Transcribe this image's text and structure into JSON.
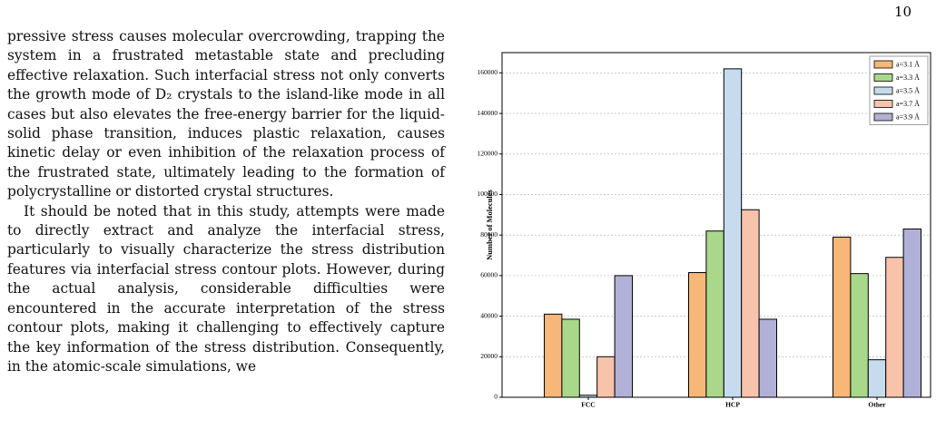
{
  "page_number": "10",
  "paragraphs": [
    "pressive stress causes molecular overcrowding, trapping the system in a frustrated metastable state and precluding effective relaxation. Such interfacial stress not only converts the growth mode of D₂ crystals to the island-like mode in all cases but also elevates the free-energy barrier for the liquid-solid phase transition, induces plastic relaxation, causes kinetic delay or even inhibition of the relaxation process of the frustrated state, ultimately leading to the formation of polycrystalline or distorted crystal structures.",
    "It should be noted that in this study, attempts were made to directly extract and analyze the interfacial stress, particularly to visually characterize the stress distribution features via interfacial stress contour plots. However, during the actual analysis, considerable difficulties were encountered in the accurate interpretation of the stress contour plots, making it challenging to effectively capture the key information of the stress distribution. Consequently, in the atomic-scale simulations, we"
  ],
  "chart_data": {
    "type": "bar",
    "y_label": "Number of Molecules",
    "categories": [
      "FCC",
      "HCP",
      "Other"
    ],
    "series": [
      {
        "name": "a=3.1 Å",
        "color": "#f6b778",
        "values": [
          41000,
          61500,
          79000
        ]
      },
      {
        "name": "a=3.3 Å",
        "color": "#a9d88b",
        "values": [
          38500,
          82000,
          61000
        ]
      },
      {
        "name": "a=3.5 Å",
        "color": "#c6dcee",
        "values": [
          1000,
          162000,
          18500
        ]
      },
      {
        "name": "a=3.7 Å",
        "color": "#f8c3ab",
        "values": [
          20000,
          92500,
          69000
        ]
      },
      {
        "name": "a=3.9 Å",
        "color": "#b1b1d7",
        "values": [
          60000,
          38500,
          83000
        ]
      }
    ],
    "ylim": [
      0,
      170000
    ],
    "yticks": [
      0,
      20000,
      40000,
      60000,
      80000,
      100000,
      120000,
      140000,
      160000
    ],
    "grid": true,
    "legend": "upper-right"
  }
}
